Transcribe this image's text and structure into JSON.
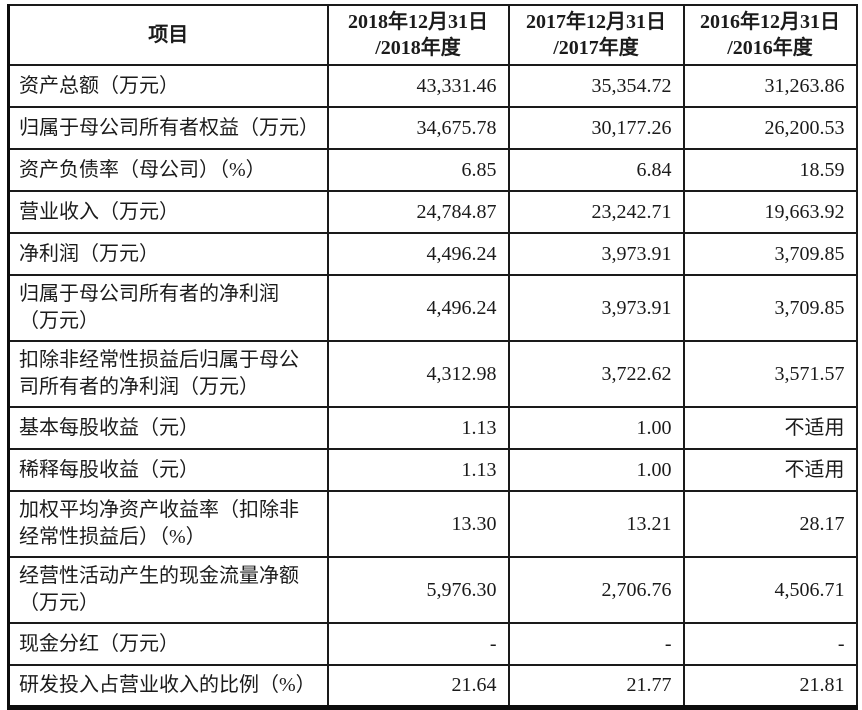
{
  "table": {
    "header": {
      "item_label": "项目",
      "columns": [
        {
          "line1": "2018年12月31日",
          "line2": "/2018年度"
        },
        {
          "line1": "2017年12月31日",
          "line2": "/2017年度"
        },
        {
          "line1": "2016年12月31日",
          "line2": "/2016年度"
        }
      ]
    },
    "rows": [
      {
        "label": "资产总额（万元）",
        "values": [
          "43,331.46",
          "35,354.72",
          "31,263.86"
        ]
      },
      {
        "label": "归属于母公司所有者权益（万元）",
        "values": [
          "34,675.78",
          "30,177.26",
          "26,200.53"
        ]
      },
      {
        "label": "资产负债率（母公司）（%）",
        "values": [
          "6.85",
          "6.84",
          "18.59"
        ]
      },
      {
        "label": "营业收入（万元）",
        "values": [
          "24,784.87",
          "23,242.71",
          "19,663.92"
        ]
      },
      {
        "label": "净利润（万元）",
        "values": [
          "4,496.24",
          "3,973.91",
          "3,709.85"
        ]
      },
      {
        "label": "归属于母公司所有者的净利润\n（万元）",
        "values": [
          "4,496.24",
          "3,973.91",
          "3,709.85"
        ]
      },
      {
        "label": "扣除非经常性损益后归属于母公\n司所有者的净利润（万元）",
        "values": [
          "4,312.98",
          "3,722.62",
          "3,571.57"
        ]
      },
      {
        "label": "基本每股收益（元）",
        "values": [
          "1.13",
          "1.00",
          "不适用"
        ]
      },
      {
        "label": "稀释每股收益（元）",
        "values": [
          "1.13",
          "1.00",
          "不适用"
        ]
      },
      {
        "label": "加权平均净资产收益率（扣除非\n经常性损益后）（%）",
        "values": [
          "13.30",
          "13.21",
          "28.17"
        ]
      },
      {
        "label": "经营性活动产生的现金流量净额\n（万元）",
        "values": [
          "5,976.30",
          "2,706.76",
          "4,506.71"
        ]
      },
      {
        "label": "现金分红（万元）",
        "values": [
          "-",
          "-",
          "-"
        ]
      },
      {
        "label": "研发投入占营业收入的比例（%）",
        "values": [
          "21.64",
          "21.77",
          "21.81"
        ]
      }
    ]
  },
  "colors": {
    "border": "#1a1a1a",
    "text": "#1b1b1b",
    "background": "#ffffff"
  }
}
